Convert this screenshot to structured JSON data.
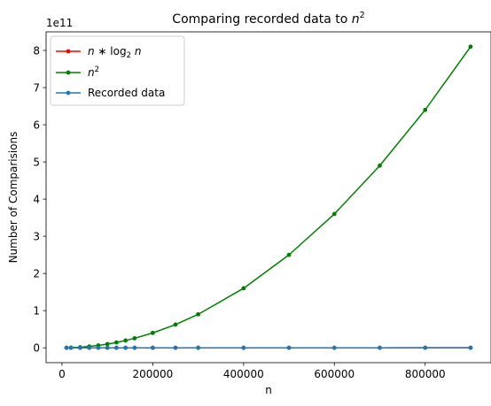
{
  "chart_data": {
    "type": "line",
    "title_prefix": "Comparing recorded data to ",
    "title_math_base": "n",
    "title_math_exp": "2",
    "xlabel": "n",
    "ylabel": "Number of Comparisions",
    "offset_text": "1e11",
    "xlim": [
      -35000,
      945000
    ],
    "ylim": [
      -0.4,
      8.5
    ],
    "y_unit": 100000000000.0,
    "x_ticks": [
      0,
      200000,
      400000,
      600000,
      800000
    ],
    "x_tick_labels": [
      "0",
      "200000",
      "400000",
      "600000",
      "800000"
    ],
    "y_ticks": [
      0,
      1,
      2,
      3,
      4,
      5,
      6,
      7,
      8
    ],
    "y_tick_labels": [
      "0",
      "1",
      "2",
      "3",
      "4",
      "5",
      "6",
      "7",
      "8"
    ],
    "grid": false,
    "legend_position": "top-left",
    "x": [
      10000,
      20000,
      40000,
      60000,
      80000,
      100000,
      120000,
      140000,
      160000,
      200000,
      250000,
      300000,
      400000,
      500000,
      600000,
      700000,
      800000,
      900000
    ],
    "series": [
      {
        "name": "n * log2 n",
        "legend_math": {
          "a": "n",
          "op": " ∗ log",
          "sub": "2",
          "b": " n"
        },
        "color": "#ff0000",
        "values": [
          132877,
          285754,
          611508,
          952326,
          1303017,
          1660964,
          2024652,
          2392861,
          2764698,
          3520385,
          4482892,
          5458381,
          7446522,
          9465784,
          11512169,
          13579542,
          15663484,
          17764846
        ]
      },
      {
        "name": "n^2",
        "legend_math": {
          "a": "n",
          "sup": "2"
        },
        "color": "#008000",
        "values": [
          100000000,
          400000000,
          1600000000,
          3600000000,
          6400000000,
          10000000000,
          14400000000,
          19600000000,
          25600000000,
          40000000000,
          62500000000,
          90000000000,
          160000000000,
          250000000000,
          360000000000,
          490000000000,
          640000000000,
          810000000000
        ]
      },
      {
        "name": "Recorded data",
        "color": "#1f77b4",
        "values": [
          135000,
          290000,
          620000,
          960000,
          1310000,
          1670000,
          2030000,
          2400000,
          2770000,
          3530000,
          4490000,
          5470000,
          7460000,
          9480000,
          11530000,
          13600000,
          15680000,
          17780000
        ]
      }
    ]
  }
}
